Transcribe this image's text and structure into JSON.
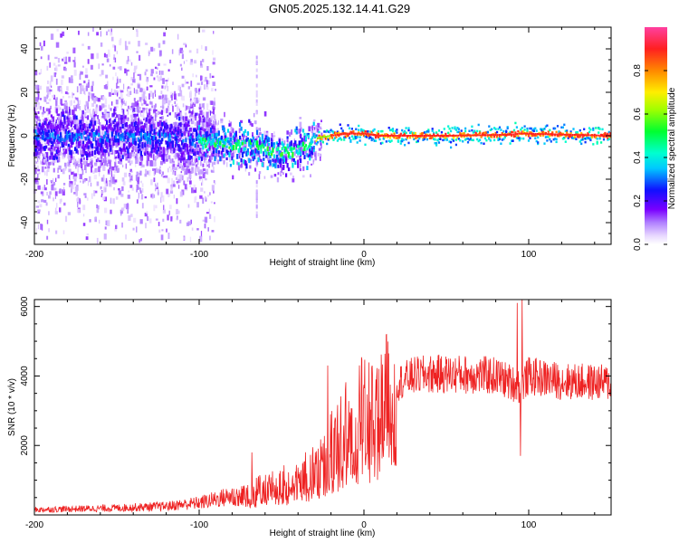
{
  "title": "GN05.2025.132.14.41.G29",
  "colors": {
    "snr_line": "#ee2222",
    "axes": "#000000",
    "spectro_core": "#ff2020"
  },
  "chart_data": [
    {
      "type": "heatmap",
      "name": "spectrogram",
      "xlabel": "Height of straight line (km)",
      "ylabel": "Frequency (Hz)",
      "xlim": [
        -200,
        150
      ],
      "ylim": [
        -50,
        50
      ],
      "xticks": [
        -200,
        -100,
        0,
        100
      ],
      "xtick_labels": [
        "-200",
        "-100",
        "0",
        "100"
      ],
      "yticks": [
        -40,
        -20,
        0,
        20,
        40
      ],
      "ytick_labels": [
        "-40",
        "-20",
        "0",
        "20",
        "40"
      ],
      "ridge": {
        "x": [
          -200,
          -120,
          -100,
          -80,
          -65,
          -55,
          -45,
          -35,
          -28,
          -20,
          -10,
          0,
          10,
          50,
          90,
          95,
          150
        ],
        "y": [
          0,
          -1,
          -3,
          -4,
          -5,
          -7,
          -8,
          -5,
          -1,
          0,
          1,
          1,
          0,
          0,
          0.5,
          1,
          0
        ]
      },
      "colorbar": {
        "label": "Normalized spectral amplitude",
        "range": [
          0,
          1
        ],
        "ticks": [
          0.0,
          0.2,
          0.4,
          0.6,
          0.8
        ],
        "tick_labels": [
          "0.0",
          "0.2",
          "0.4",
          "0.6",
          "0.8"
        ]
      }
    },
    {
      "type": "line",
      "name": "snr",
      "xlabel": "Height of straight line (km)",
      "ylabel": "SNR (10 * v/v)",
      "xlim": [
        -200,
        150
      ],
      "ylim": [
        0,
        6200
      ],
      "xticks": [
        -200,
        -100,
        0,
        100
      ],
      "xtick_labels": [
        "-200",
        "-100",
        "0",
        "100"
      ],
      "yticks": [
        2000,
        4000,
        6000
      ],
      "ytick_labels": [
        "2000",
        "4000",
        "6000"
      ],
      "series": [
        {
          "name": "SNR",
          "envelope_x": [
            -200,
            -150,
            -120,
            -100,
            -80,
            -60,
            -40,
            -30,
            -20,
            -10,
            0,
            10,
            20,
            30,
            40,
            60,
            80,
            95,
            100,
            120,
            150
          ],
          "envelope_y": [
            150,
            200,
            250,
            350,
            550,
            750,
            1000,
            1300,
            1900,
            2500,
            2900,
            3300,
            3800,
            4000,
            4050,
            4050,
            4000,
            3700,
            4000,
            3850,
            3800
          ],
          "spikes": [
            {
              "x": -68,
              "y": 1800
            },
            {
              "x": -22,
              "y": 4300
            },
            {
              "x": 93,
              "y": 6100
            },
            {
              "x": 95,
              "y": 1700
            },
            {
              "x": 96,
              "y": 6200
            }
          ]
        }
      ]
    }
  ]
}
